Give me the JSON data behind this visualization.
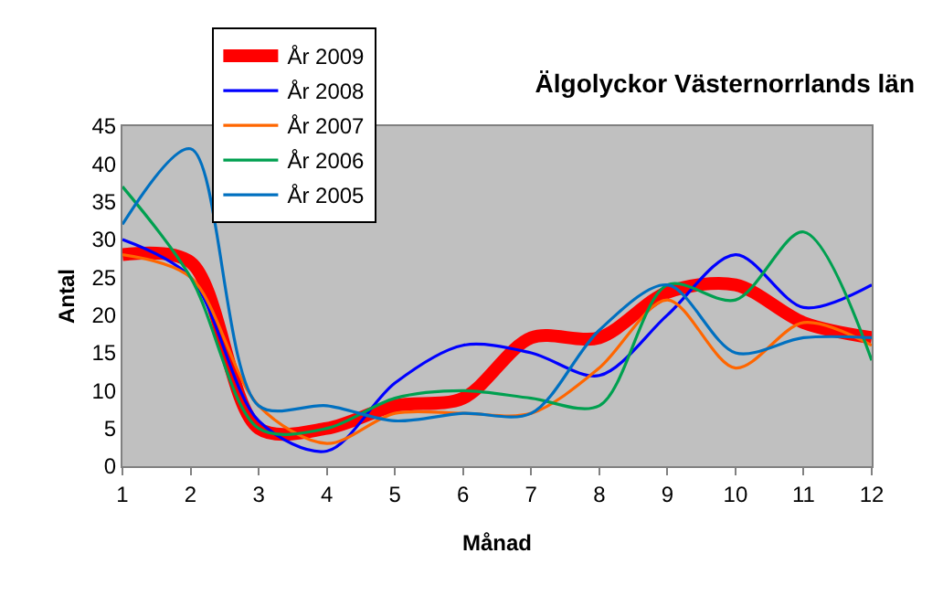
{
  "chart_data": {
    "type": "line",
    "title": "Älgolyckor Västernorrlands län",
    "xlabel": "Månad",
    "ylabel": "Antal",
    "x": [
      1,
      2,
      3,
      4,
      5,
      6,
      7,
      8,
      9,
      10,
      11,
      12
    ],
    "xlim": [
      1,
      12
    ],
    "xticks": [
      1,
      2,
      3,
      4,
      5,
      6,
      7,
      8,
      9,
      10,
      11,
      12
    ],
    "ylim": [
      0,
      45
    ],
    "yticks": [
      0,
      5,
      10,
      15,
      20,
      25,
      30,
      35,
      40,
      45
    ],
    "grid": false,
    "legend": "top left",
    "marker": "none",
    "line_style": "solid",
    "series": [
      {
        "name": "År 2009",
        "color": "#ff0000",
        "values": [
          28,
          27,
          5,
          5,
          8,
          9,
          17,
          17,
          23,
          24,
          19,
          17
        ]
      },
      {
        "name": "År 2008",
        "color": "#0000ff",
        "values": [
          30,
          25,
          6,
          2,
          11,
          16,
          15,
          12,
          20,
          28,
          21,
          24
        ]
      },
      {
        "name": "År 2007",
        "color": "#ff6600",
        "values": [
          28,
          25,
          8,
          3,
          7,
          7,
          7,
          13,
          22,
          13,
          19,
          16
        ]
      },
      {
        "name": "År 2006",
        "color": "#00a050",
        "values": [
          37,
          25,
          5,
          5,
          9,
          10,
          9,
          8,
          24,
          22,
          31,
          14
        ]
      },
      {
        "name": "År 2005",
        "color": "#0070c0",
        "values": [
          32,
          42,
          8,
          8,
          6,
          7,
          7,
          18,
          24,
          15,
          17,
          17
        ]
      }
    ]
  }
}
